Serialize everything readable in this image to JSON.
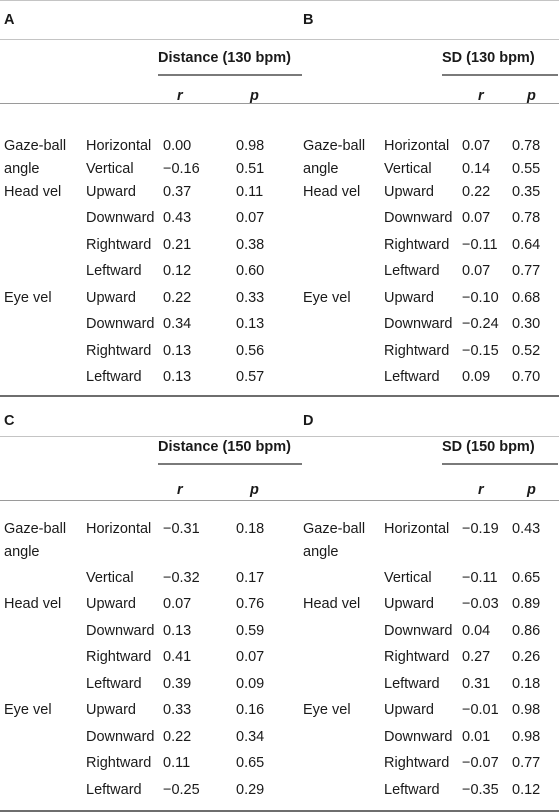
{
  "panels": [
    {
      "label": "A",
      "header": "Distance (130 bpm)",
      "col_r": "r",
      "col_p": "p",
      "rows": [
        {
          "group": "Gaze-ball",
          "group2": "angle",
          "measure": "Horizontal",
          "r": "0.00",
          "p": "0.98"
        },
        {
          "group": "",
          "measure": "Vertical",
          "r": "−0.16",
          "p": "0.51"
        },
        {
          "group": "Head vel",
          "measure": "Upward",
          "r": "0.37",
          "p": "0.11"
        },
        {
          "group": "",
          "measure": "Downward",
          "r": "0.43",
          "p": "0.07"
        },
        {
          "group": "",
          "measure": "Rightward",
          "r": "0.21",
          "p": "0.38"
        },
        {
          "group": "",
          "measure": "Leftward",
          "r": "0.12",
          "p": "0.60"
        },
        {
          "group": "Eye vel",
          "measure": "Upward",
          "r": "0.22",
          "p": "0.33"
        },
        {
          "group": "",
          "measure": "Downward",
          "r": "0.34",
          "p": "0.13"
        },
        {
          "group": "",
          "measure": "Rightward",
          "r": "0.13",
          "p": "0.56"
        },
        {
          "group": "",
          "measure": "Leftward",
          "r": "0.13",
          "p": "0.57"
        }
      ]
    },
    {
      "label": "B",
      "header": "SD (130 bpm)",
      "col_r": "r",
      "col_p": "p",
      "rows": [
        {
          "group": "Gaze-ball",
          "group2": "angle",
          "measure": "Horizontal",
          "r": "0.07",
          "p": "0.78"
        },
        {
          "group": "",
          "measure": "Vertical",
          "r": "0.14",
          "p": "0.55"
        },
        {
          "group": "Head vel",
          "measure": "Upward",
          "r": "0.22",
          "p": "0.35"
        },
        {
          "group": "",
          "measure": "Downward",
          "r": "0.07",
          "p": "0.78"
        },
        {
          "group": "",
          "measure": "Rightward",
          "r": "−0.11",
          "p": "0.64"
        },
        {
          "group": "",
          "measure": "Leftward",
          "r": "0.07",
          "p": "0.77"
        },
        {
          "group": "Eye vel",
          "measure": "Upward",
          "r": "−0.10",
          "p": "0.68"
        },
        {
          "group": "",
          "measure": "Downward",
          "r": "−0.24",
          "p": "0.30"
        },
        {
          "group": "",
          "measure": "Rightward",
          "r": "−0.15",
          "p": "0.52"
        },
        {
          "group": "",
          "measure": "Leftward",
          "r": "0.09",
          "p": "0.70"
        }
      ]
    },
    {
      "label": "C",
      "header": "Distance (150 bpm)",
      "col_r": "r",
      "col_p": "p",
      "rows": [
        {
          "group": "Gaze-ball",
          "group2": "angle",
          "measure": "Horizontal",
          "r": "−0.31",
          "p": "0.18"
        },
        {
          "group": "",
          "measure": "Vertical",
          "r": "−0.32",
          "p": "0.17"
        },
        {
          "group": "Head vel",
          "measure": "Upward",
          "r": "0.07",
          "p": "0.76"
        },
        {
          "group": "",
          "measure": "Downward",
          "r": "0.13",
          "p": "0.59"
        },
        {
          "group": "",
          "measure": "Rightward",
          "r": "0.41",
          "p": "0.07"
        },
        {
          "group": "",
          "measure": "Leftward",
          "r": "0.39",
          "p": "0.09"
        },
        {
          "group": "Eye vel",
          "measure": "Upward",
          "r": "0.33",
          "p": "0.16"
        },
        {
          "group": "",
          "measure": "Downward",
          "r": "0.22",
          "p": "0.34"
        },
        {
          "group": "",
          "measure": "Rightward",
          "r": "0.11",
          "p": "0.65"
        },
        {
          "group": "",
          "measure": "Leftward",
          "r": "−0.25",
          "p": "0.29"
        }
      ]
    },
    {
      "label": "D",
      "header": "SD (150 bpm)",
      "col_r": "r",
      "col_p": "p",
      "rows": [
        {
          "group": "Gaze-ball",
          "group2": "angle",
          "measure": "Horizontal",
          "r": "−0.19",
          "p": "0.43"
        },
        {
          "group": "",
          "measure": "Vertical",
          "r": "−0.11",
          "p": "0.65"
        },
        {
          "group": "Head vel",
          "measure": "Upward",
          "r": "−0.03",
          "p": "0.89"
        },
        {
          "group": "",
          "measure": "Downward",
          "r": "0.04",
          "p": "0.86"
        },
        {
          "group": "",
          "measure": "Rightward",
          "r": "0.27",
          "p": "0.26"
        },
        {
          "group": "",
          "measure": "Leftward",
          "r": "0.31",
          "p": "0.18"
        },
        {
          "group": "Eye vel",
          "measure": "Upward",
          "r": "−0.01",
          "p": "0.98"
        },
        {
          "group": "",
          "measure": "Downward",
          "r": "0.01",
          "p": "0.98"
        },
        {
          "group": "",
          "measure": "Rightward",
          "r": "−0.07",
          "p": "0.77"
        },
        {
          "group": "",
          "measure": "Leftward",
          "r": "−0.35",
          "p": "0.12"
        }
      ]
    }
  ]
}
